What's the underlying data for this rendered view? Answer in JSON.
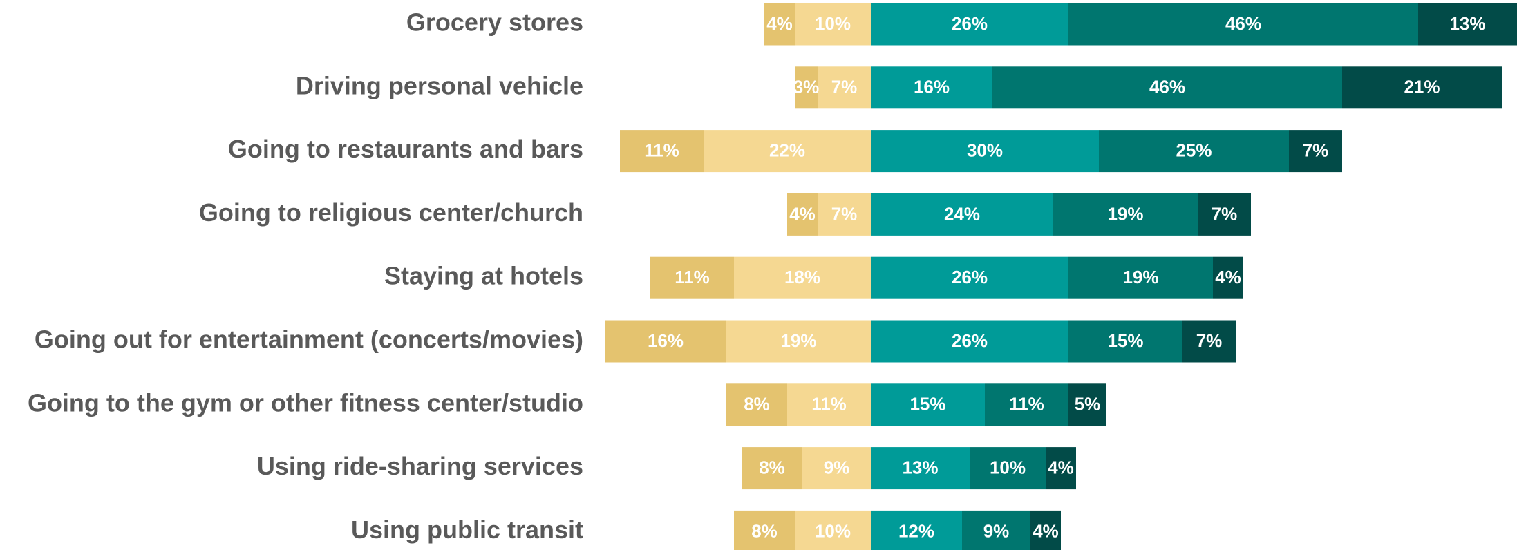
{
  "chart_data": {
    "type": "diverging-bar",
    "categories": [
      "Grocery stores",
      "Driving personal vehicle",
      "Going to restaurants and bars",
      "Going to religious center/church",
      "Staying at hotels",
      "Going out for entertainment (concerts/movies)",
      "Going to the gym or other fitness center/studio",
      "Using ride-sharing services",
      "Using public transit"
    ],
    "series": [
      {
        "color": "#e4c36f",
        "values": [
          -4,
          -3,
          -11,
          -4,
          -11,
          -16,
          -8,
          -8,
          -8
        ],
        "value_labels": [
          "4%",
          "3%",
          "11%",
          "4%",
          "11%",
          "16%",
          "8%",
          "8%",
          "8%"
        ]
      },
      {
        "color": "#f5d892",
        "values": [
          -10,
          -7,
          -22,
          -7,
          -18,
          -19,
          -11,
          -9,
          -10
        ],
        "value_labels": [
          "10%",
          "7%",
          "22%",
          "7%",
          "18%",
          "19%",
          "11%",
          "9%",
          "10%"
        ]
      },
      {
        "color": "#009b98",
        "values": [
          26,
          16,
          30,
          24,
          26,
          26,
          15,
          13,
          12
        ],
        "value_labels": [
          "26%",
          "16%",
          "30%",
          "24%",
          "26%",
          "26%",
          "15%",
          "13%",
          "12%"
        ]
      },
      {
        "color": "#00766f",
        "values": [
          46,
          46,
          25,
          19,
          19,
          15,
          11,
          10,
          9
        ],
        "value_labels": [
          "46%",
          "46%",
          "25%",
          "19%",
          "19%",
          "15%",
          "11%",
          "10%",
          "9%"
        ]
      },
      {
        "color": "#024b48",
        "values": [
          13,
          21,
          7,
          7,
          4,
          7,
          5,
          4,
          4
        ],
        "value_labels": [
          "13%",
          "21%",
          "7%",
          "7%",
          "4%",
          "7%",
          "5%",
          "4%",
          "4%"
        ]
      }
    ]
  }
}
